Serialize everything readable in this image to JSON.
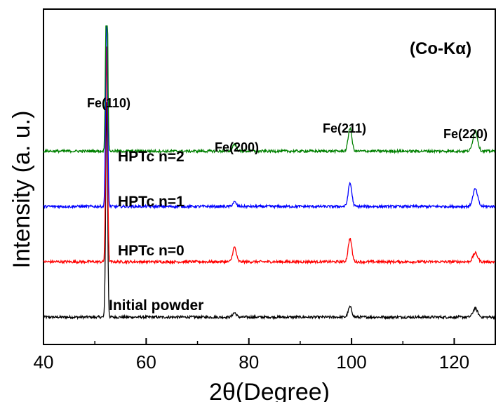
{
  "chart_data": {
    "type": "line",
    "title": "",
    "xlabel": "2θ(Degree)",
    "ylabel": "Intensity (a. u.)",
    "xlim": [
      40,
      128
    ],
    "xticks": [
      40,
      60,
      80,
      100,
      120
    ],
    "y_tick_labels": "none",
    "grid": false,
    "legend": "none",
    "annotations": {
      "radiation": "(Co-Kα)",
      "peaks": [
        "Fe(110)",
        "Fe(200)",
        "Fe(211)",
        "Fe(220)"
      ]
    },
    "peak_positions_2theta": [
      52.3,
      77.2,
      99.7,
      124.1
    ],
    "series": [
      {
        "name": "Initial powder",
        "color": "#000000",
        "offset": 0,
        "peak_heights": [
          75,
          1.5,
          3.5,
          3
        ]
      },
      {
        "name": "HPTc n=0",
        "color": "#ff0000",
        "offset": 19,
        "peak_heights": [
          75,
          5,
          8,
          3
        ]
      },
      {
        "name": "HPTc n=1",
        "color": "#0000ff",
        "offset": 38,
        "peak_heights": [
          75,
          1.5,
          8,
          6
        ]
      },
      {
        "name": "HPTc n=2",
        "color": "#008000",
        "offset": 57,
        "peak_heights": [
          80,
          2.5,
          8,
          7
        ]
      }
    ]
  }
}
